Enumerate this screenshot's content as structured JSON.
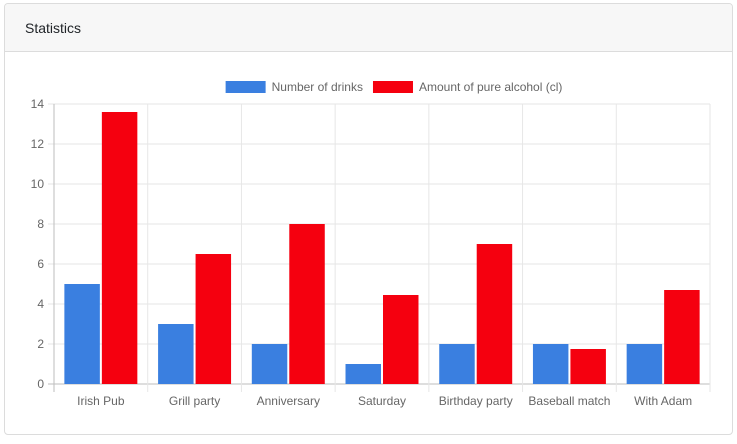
{
  "card": {
    "title": "Statistics"
  },
  "chart_data": {
    "type": "bar",
    "categories": [
      "Irish Pub",
      "Grill party",
      "Anniversary",
      "Saturday",
      "Birthday party",
      "Baseball match",
      "With Adam"
    ],
    "series": [
      {
        "name": "Number of drinks",
        "color": "#3a7fe0",
        "values": [
          5,
          3,
          2,
          1,
          2,
          2,
          2
        ]
      },
      {
        "name": "Amount of pure alcohol (cl)",
        "color": "#f5000f",
        "values": [
          13.6,
          6.5,
          8,
          4.45,
          7,
          1.75,
          4.7
        ]
      }
    ],
    "ylim": [
      0,
      14
    ],
    "yticks": [
      0,
      2,
      4,
      6,
      8,
      10,
      12,
      14
    ],
    "grid": true,
    "legend": "top-center"
  }
}
